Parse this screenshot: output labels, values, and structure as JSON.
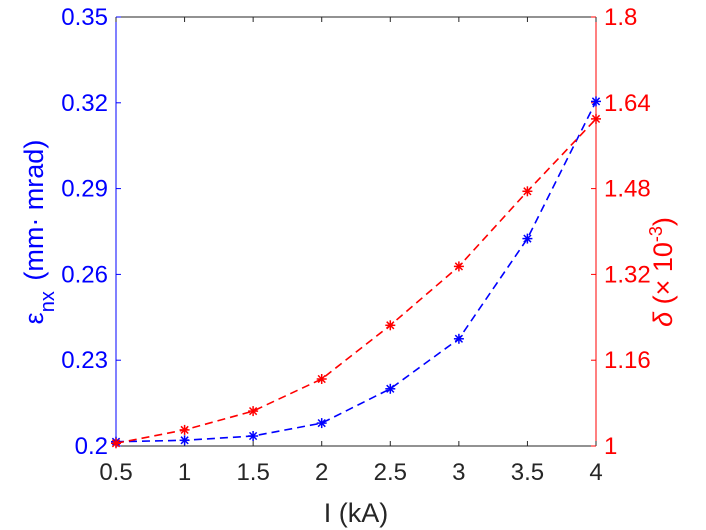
{
  "chart_data": {
    "type": "line",
    "xlabel": "I (kA)",
    "x": [
      0.5,
      1,
      1.5,
      2,
      2.5,
      3,
      3.5,
      4
    ],
    "x_ticks": [
      "0.5",
      "1",
      "1.5",
      "2",
      "2.5",
      "3",
      "3.5",
      "4"
    ],
    "xlim": [
      0.5,
      4
    ],
    "y_left": {
      "label_main": "ε",
      "label_sub": "nx",
      "label_rest": " (mm· mrad)",
      "ylim": [
        0.2,
        0.35
      ],
      "ticks": [
        "0.2",
        "0.23",
        "0.26",
        "0.29",
        "0.32",
        "0.35"
      ],
      "color": "#0000ff"
    },
    "y_right": {
      "label_main": "δ",
      "label_open": " (× 10",
      "label_sup": "-3",
      "label_close": ")",
      "ylim": [
        1.0,
        1.8
      ],
      "ticks": [
        "1",
        "1.16",
        "1.32",
        "1.48",
        "1.64",
        "1.8"
      ],
      "color": "#ff0000"
    },
    "series": [
      {
        "axis": "left",
        "color": "#0000ff",
        "line_style": "dashed",
        "marker": "asterisk",
        "values": [
          0.2015,
          0.202,
          0.2035,
          0.208,
          0.22,
          0.2375,
          0.2725,
          0.3205
        ]
      },
      {
        "axis": "right",
        "color": "#ff0000",
        "line_style": "dashed",
        "marker": "asterisk",
        "values": [
          1.005,
          1.03,
          1.065,
          1.125,
          1.225,
          1.335,
          1.475,
          1.61
        ]
      }
    ],
    "grid": false,
    "legend": "none"
  }
}
